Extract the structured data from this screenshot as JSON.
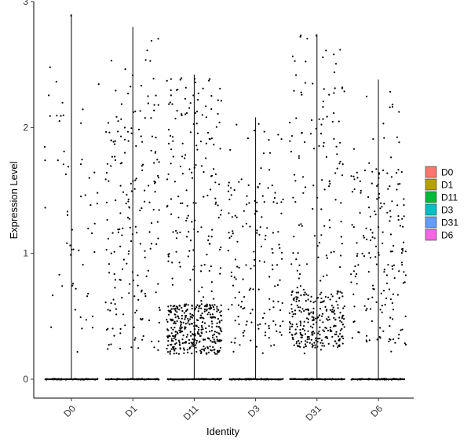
{
  "chart_data": {
    "type": "violin",
    "title": "",
    "xlabel": "Identity",
    "ylabel": "Expression Level",
    "categories": [
      "D0",
      "D1",
      "D11",
      "D3",
      "D31",
      "D6"
    ],
    "ylim": [
      -0.15,
      3.0
    ],
    "yticks": [
      0,
      1,
      2,
      3
    ],
    "y_tick_labels": [
      "0",
      "1",
      "2",
      "3"
    ],
    "max_values": [
      2.9,
      2.8,
      2.42,
      2.08,
      2.74,
      2.38
    ],
    "point_density": [
      {
        "category": "D0",
        "zero_fraction": 0.93,
        "nonzero_points": 60,
        "mode_band": [
          0.2,
          2.4
        ]
      },
      {
        "category": "D1",
        "zero_fraction": 0.8,
        "nonzero_points": 200,
        "mode_band": [
          0.25,
          2.2
        ]
      },
      {
        "category": "D11",
        "zero_fraction": 0.6,
        "nonzero_points": 520,
        "mode_band": [
          0.2,
          0.6
        ]
      },
      {
        "category": "D3",
        "zero_fraction": 0.85,
        "nonzero_points": 160,
        "mode_band": [
          0.2,
          1.6
        ]
      },
      {
        "category": "D31",
        "zero_fraction": 0.7,
        "nonzero_points": 380,
        "mode_band": [
          0.25,
          0.7
        ]
      },
      {
        "category": "D6",
        "zero_fraction": 0.85,
        "nonzero_points": 190,
        "mode_band": [
          0.25,
          1.7
        ]
      }
    ],
    "legend": {
      "title": "",
      "position": "right",
      "entries": [
        "D0",
        "D1",
        "D11",
        "D3",
        "D31",
        "D6"
      ]
    },
    "colors": [
      "#F8766D",
      "#B79F00",
      "#00BA38",
      "#00BFC4",
      "#619CFF",
      "#F564E3"
    ],
    "grid": false,
    "point_color": "#000000"
  }
}
